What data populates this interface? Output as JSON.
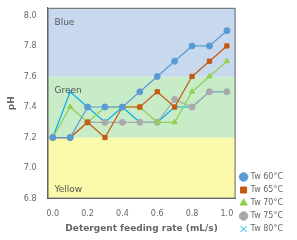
{
  "chart_data": {
    "type": "line",
    "xlabel": "Detergent feeding rate (mL/s)",
    "ylabel": "pH",
    "x": [
      0,
      0.1,
      0.2,
      0.3,
      0.4,
      0.5,
      0.6,
      0.7,
      0.8,
      0.9,
      1.0
    ],
    "series": [
      {
        "name": "Tw 60°C",
        "color": "#5B9BD5",
        "marker": "circle",
        "values": [
          7.2,
          7.2,
          7.4,
          7.4,
          7.4,
          7.5,
          7.6,
          7.7,
          7.8,
          7.8,
          7.9
        ]
      },
      {
        "name": "Tw 65°C",
        "color": "#C55A11",
        "marker": "square",
        "values": [
          7.2,
          7.2,
          7.3,
          7.2,
          7.4,
          7.4,
          7.5,
          7.4,
          7.6,
          7.7,
          7.8
        ]
      },
      {
        "name": "Tw 70°C",
        "color": "#92D050",
        "marker": "triangle",
        "values": [
          7.2,
          7.4,
          7.3,
          7.4,
          7.4,
          7.4,
          7.3,
          7.3,
          7.5,
          7.6,
          7.7
        ]
      },
      {
        "name": "Tw 75°C",
        "color": "#A9A9A9",
        "marker": "circle",
        "values": [
          7.2,
          7.2,
          7.3,
          7.3,
          7.3,
          7.3,
          7.3,
          7.45,
          7.4,
          7.5,
          7.5
        ]
      },
      {
        "name": "Tw 80°C",
        "color": "#00B0F0",
        "marker": "x",
        "values": [
          7.2,
          7.5,
          7.4,
          7.3,
          7.4,
          7.3,
          7.3,
          7.4,
          7.4,
          7.5,
          7.5
        ]
      }
    ],
    "xlim": [
      -0.03,
      1.05
    ],
    "ylim": [
      6.8,
      8.05
    ],
    "xticks": [
      {
        "value": 0,
        "label": "0.0"
      },
      0.2,
      0.4,
      0.6,
      0.8,
      {
        "value": 1.0,
        "label": "1.0"
      }
    ],
    "yticks": [
      6.8,
      {
        "value": 7.0,
        "label": "7.0"
      },
      7.2,
      7.4,
      7.6,
      7.8,
      {
        "value": 8.0,
        "label": "8.0"
      }
    ],
    "zones": [
      {
        "from": 6.8,
        "to": 7.2,
        "color": "#FAFAAA"
      },
      {
        "from": 7.2,
        "to": 7.6,
        "color": "#C8EBC8"
      },
      {
        "from": 7.6,
        "to": 8.05,
        "color": "#C8D8EE"
      }
    ],
    "annotations": [
      {
        "text": "Blue",
        "x": 0.01,
        "y": 7.92
      },
      {
        "text": "Green",
        "x": 0.01,
        "y": 7.48
      },
      {
        "text": "Yellow",
        "x": 0.01,
        "y": 6.83
      }
    ],
    "grid": false,
    "legend": "lower right"
  }
}
